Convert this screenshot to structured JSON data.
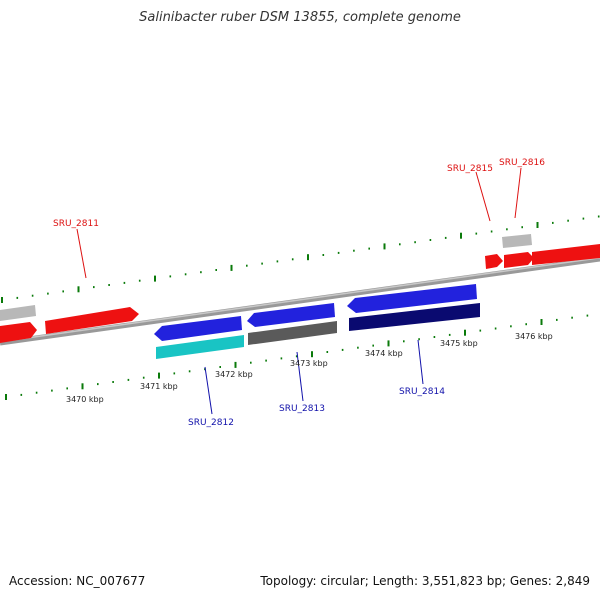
{
  "header": {
    "title": "Salinibacter ruber DSM 13855, complete genome"
  },
  "footer": {
    "accession": "Accession: NC_007677",
    "summary": "Topology: circular; Length: 3,551,823 bp; Genes: 2,849"
  },
  "colors": {
    "forward_gene": "#ee1111",
    "reverse_gene": "#2222dd",
    "reverse_gene_dark": "#0a0a70",
    "gray_gene": "#b4b4b4",
    "dark_gray_gene": "#5a5a5a",
    "cyan_gene": "#19c4c4",
    "tick": "#0a7a0a",
    "backbone": "#888888",
    "forward_label": "#dd1111",
    "reverse_label": "#1111aa"
  },
  "genome_map": {
    "kbp_labels": [
      "3470 kbp",
      "3471 kbp",
      "3472 kbp",
      "3473 kbp",
      "3474 kbp",
      "3475 kbp",
      "3476 kbp"
    ],
    "forward_labels": [
      "SRU_2811",
      "SRU_2815",
      "SRU_2816"
    ],
    "reverse_labels": [
      "SRU_2812",
      "SRU_2813",
      "SRU_2814"
    ]
  }
}
